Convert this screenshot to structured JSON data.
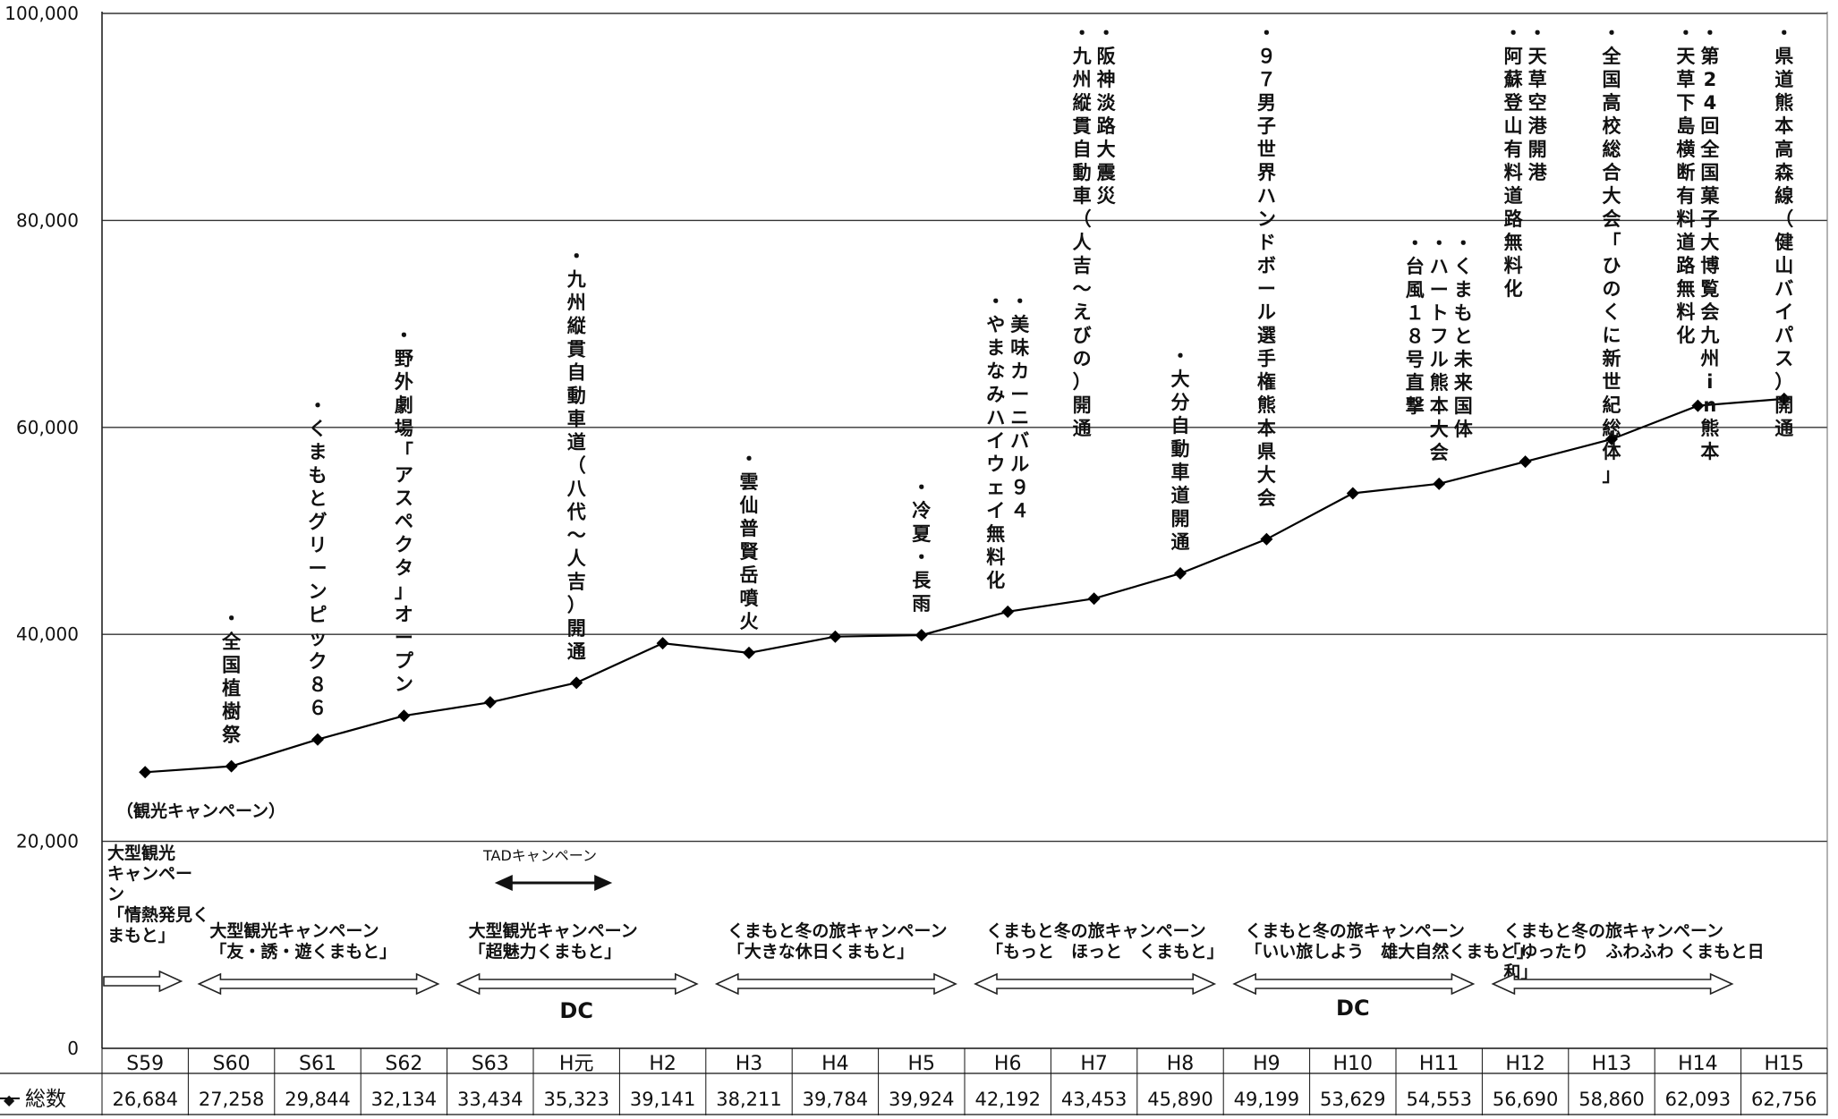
{
  "chart_data": {
    "type": "line",
    "categories": [
      "S59",
      "S60",
      "S61",
      "S62",
      "S63",
      "H元",
      "H2",
      "H3",
      "H4",
      "H5",
      "H6",
      "H7",
      "H8",
      "H9",
      "H10",
      "H11",
      "H12",
      "H13",
      "H14",
      "H15"
    ],
    "series": [
      {
        "name": "総数",
        "marker_symbol": "◆",
        "color": "#000000",
        "values": [
          26684,
          27258,
          29844,
          32134,
          33434,
          35323,
          39141,
          38211,
          39784,
          39924,
          42192,
          43453,
          45890,
          49199,
          53629,
          54553,
          56690,
          58860,
          62093,
          62756
        ]
      }
    ],
    "value_labels": [
      "26,684",
      "27,258",
      "29,844",
      "32,134",
      "33,434",
      "35,323",
      "39,141",
      "38,211",
      "39,784",
      "39,924",
      "42,192",
      "43,453",
      "45,890",
      "49,199",
      "53,629",
      "54,553",
      "56,690",
      "58,860",
      "62,093",
      "62,756"
    ],
    "ylim": [
      0,
      100000
    ],
    "yticks": [
      0,
      20000,
      40000,
      60000,
      80000,
      100000
    ],
    "ytick_labels": [
      "0",
      "20,000",
      "40,000",
      "60,000",
      "80,000",
      "100,000"
    ],
    "grid": true,
    "title": "",
    "xlabel": "",
    "ylabel": "",
    "event_annotations": [
      {
        "category": "S60",
        "lines": [
          "・全国植樹祭"
        ]
      },
      {
        "category": "S61",
        "lines": [
          "・くまもとグリーンピック８６"
        ]
      },
      {
        "category": "S62",
        "lines": [
          "・野外劇場「アスペクタ」オープン"
        ]
      },
      {
        "category": "H元",
        "lines": [
          "・九州縦貫自動車道（八代～人吉）開通"
        ]
      },
      {
        "category": "H3",
        "lines": [
          "・雲仙普賢岳噴火"
        ]
      },
      {
        "category": "H5",
        "lines": [
          "・冷夏・長雨"
        ]
      },
      {
        "category": "H6",
        "lines": [
          "・美味カーニバル９４",
          "・やまなみハイウェイ無料化"
        ]
      },
      {
        "category": "H7",
        "lines": [
          "・阪神淡路大震災",
          "・九州縦貫自動車（人吉～えびの）開通"
        ]
      },
      {
        "category": "H8",
        "lines": [
          "・大分自動車道開通"
        ]
      },
      {
        "category": "H9",
        "lines": [
          "・９７男子世界ハンドボール選手権熊本県大会"
        ]
      },
      {
        "category": "H11",
        "lines": [
          "・くまもと未来国体",
          "・ハートフル熊本大会",
          "・台風１８号直撃"
        ]
      },
      {
        "category": "H12",
        "lines": [
          "・天草空港開港",
          "・阿蘇登山有料道路無料化"
        ]
      },
      {
        "category": "H13",
        "lines": [
          "・全国高校総合大会「ひのくに新世紀総体」"
        ]
      },
      {
        "category": "H14",
        "lines": [
          "・第24回全国菓子大博覧会九州in熊本",
          "・天草下島横断有料道路無料化"
        ]
      },
      {
        "category": "H15",
        "lines": [
          "・県道熊本高森線（健山バイパス）開通"
        ]
      }
    ],
    "campaign_annotations": {
      "kanko_label": "（観光キャンペーン）",
      "tad_label": "TADキャンペーン",
      "dc_label": "DC",
      "items": [
        {
          "from": "S59",
          "to": "S59",
          "lines": [
            "大型観光",
            "キャンペー",
            "ン",
            "「情熱発見く",
            "まもと」"
          ]
        },
        {
          "from": "S60",
          "to": "S62",
          "lines": [
            "大型観光キャンペーン",
            "「友・誘・遊くまもと」"
          ]
        },
        {
          "from": "S63",
          "to": "H2",
          "lines": [
            "大型観光キャンペーン",
            "「超魅力くまもと」"
          ]
        },
        {
          "from": "H3",
          "to": "H5",
          "lines": [
            "くまもと冬の旅キャンペーン",
            "「大きな休日くまもと」"
          ]
        },
        {
          "from": "H6",
          "to": "H8",
          "lines": [
            "くまもと冬の旅キャンペーン",
            "「もっと　ほっと　くまもと」"
          ]
        },
        {
          "from": "H9",
          "to": "H11",
          "lines": [
            "くまもと冬の旅キャンペーン",
            "「いい旅しよう　雄大自然くまもと」"
          ]
        },
        {
          "from": "H12",
          "to": "H14",
          "lines": [
            "くまもと冬の旅キャンペーン",
            "「ゆったり　ふわふわ くまもと日",
            "和」"
          ]
        }
      ]
    }
  }
}
